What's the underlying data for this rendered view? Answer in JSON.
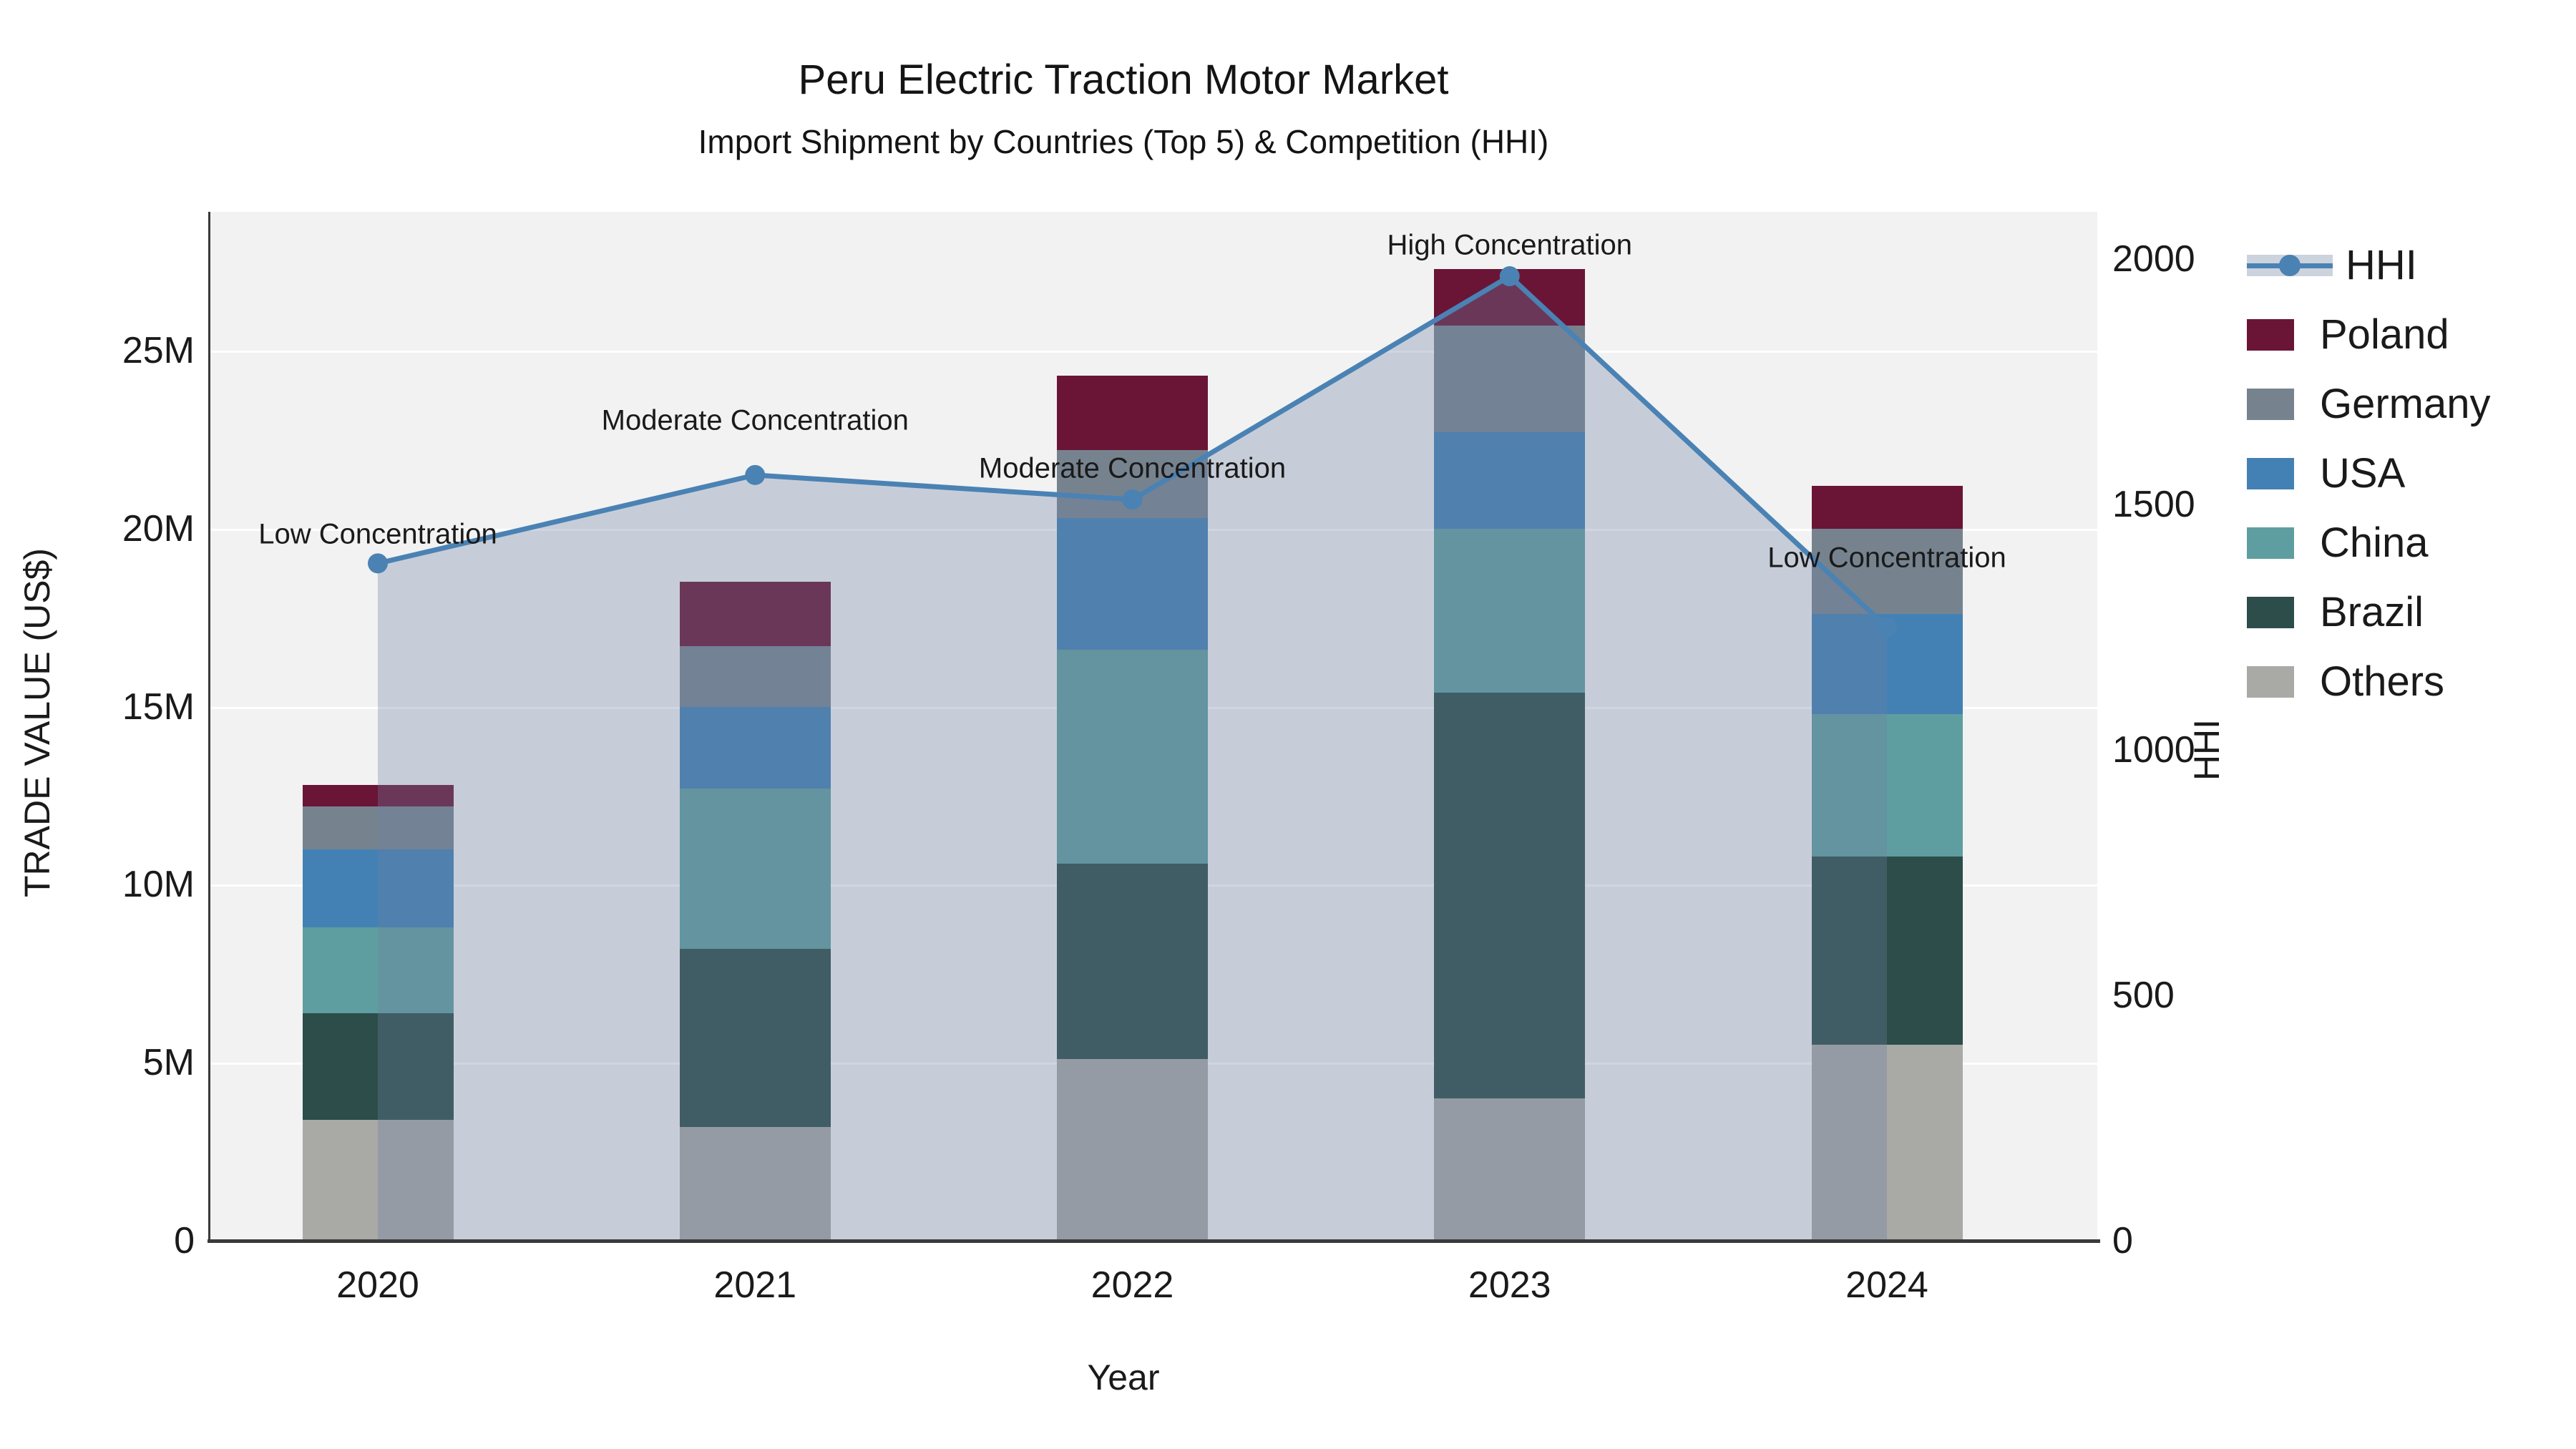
{
  "title": {
    "line1": "Peru Electric Traction Motor Market",
    "line2": "Import Shipment by Countries (Top 5) & Competition (HHI)"
  },
  "axes": {
    "y_left": {
      "title": "TRADE VALUE (US$)",
      "tick_values": [
        0,
        5,
        10,
        15,
        20,
        25
      ],
      "tick_labels": [
        "0",
        "5M",
        "10M",
        "15M",
        "20M",
        "25M"
      ]
    },
    "y_right": {
      "title": "HHI",
      "tick_values": [
        0,
        500,
        1000,
        1500,
        2000
      ],
      "tick_labels": [
        "0",
        "500",
        "1000",
        "1500",
        "2000"
      ]
    },
    "x": {
      "title": "Year"
    }
  },
  "colors": {
    "plot_background": "#f2f2f2",
    "gridline": "#ffffff",
    "hhi_line": "#4a82b4",
    "hhi_area_fill": "rgba(109,128,163,0.32)",
    "legend_area_band": "#ccd3dd",
    "text": "#1a1a1a"
  },
  "chart_data": {
    "type": "bar",
    "subtype": "stacked-bars-with-line",
    "categories": [
      "2020",
      "2021",
      "2022",
      "2023",
      "2024"
    ],
    "bar_value_unit": "million US$",
    "series": [
      {
        "name": "Others",
        "color": "#a9a9a6",
        "values": [
          3.4,
          3.2,
          5.1,
          4.0,
          5.5
        ]
      },
      {
        "name": "Brazil",
        "color": "#2c4d49",
        "values": [
          3.0,
          5.0,
          5.5,
          11.4,
          5.3
        ]
      },
      {
        "name": "China",
        "color": "#5f9ea0",
        "values": [
          2.4,
          4.5,
          6.0,
          4.6,
          4.0
        ]
      },
      {
        "name": "USA",
        "color": "#4381b4",
        "values": [
          2.2,
          2.3,
          3.7,
          2.7,
          2.8
        ]
      },
      {
        "name": "Germany",
        "color": "#76838f",
        "values": [
          1.2,
          1.7,
          1.9,
          3.0,
          2.4
        ]
      },
      {
        "name": "Poland",
        "color": "#6a1536",
        "values": [
          0.6,
          1.8,
          2.1,
          1.6,
          1.2
        ]
      }
    ],
    "line_series": {
      "name": "HHI",
      "color": "#4a82b4",
      "values": [
        1380,
        1560,
        1510,
        1965,
        1250
      ]
    },
    "annotations": [
      {
        "year": "2020",
        "text": "Low Concentration"
      },
      {
        "year": "2021",
        "text": "Moderate Concentration"
      },
      {
        "year": "2022",
        "text": "Moderate Concentration"
      },
      {
        "year": "2023",
        "text": "High Concentration"
      },
      {
        "year": "2024",
        "text": "Low Concentration"
      }
    ],
    "ylim_left_millions": [
      0,
      28.9
    ],
    "ylim_right_hhi": [
      0,
      2096
    ],
    "grid": "horizontal-major",
    "legend_position": "right"
  },
  "legend": {
    "entries": [
      {
        "label": "HHI",
        "type": "line",
        "color": "#4a82b4"
      },
      {
        "label": "Poland",
        "type": "patch",
        "color": "#6a1536"
      },
      {
        "label": "Germany",
        "type": "patch",
        "color": "#76838f"
      },
      {
        "label": "USA",
        "type": "patch",
        "color": "#4381b4"
      },
      {
        "label": "China",
        "type": "patch",
        "color": "#5f9ea0"
      },
      {
        "label": "Brazil",
        "type": "patch",
        "color": "#2c4d49"
      },
      {
        "label": "Others",
        "type": "patch",
        "color": "#a9a9a6"
      }
    ]
  }
}
